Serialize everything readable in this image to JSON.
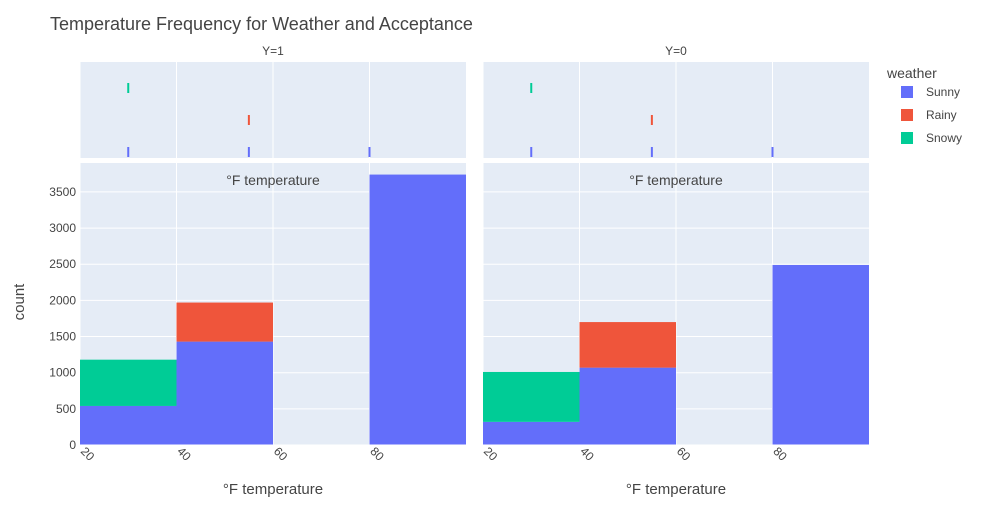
{
  "chart_data": {
    "type": "bar",
    "title": "Temperature Frequency for Weather and Acceptance",
    "facet_labels": [
      "Y=1",
      "Y=0"
    ],
    "xlabel": "°F temperature",
    "ylabel": "count",
    "panel_annotation": "°F temperature",
    "x_ticks": [
      "20",
      "40",
      "60",
      "80"
    ],
    "y_ticks": [
      "0",
      "500",
      "1000",
      "1500",
      "2000",
      "2500",
      "3000",
      "3500"
    ],
    "xlim": [
      20,
      100
    ],
    "ylim": [
      0,
      3900
    ],
    "bin_edges": [
      20,
      40,
      60,
      80,
      100
    ],
    "legend": {
      "title": "weather",
      "position": "top-right",
      "items": [
        "Sunny",
        "Rainy",
        "Snowy"
      ]
    },
    "colors": {
      "Sunny": "#636efa",
      "Rainy": "#ef553b",
      "Snowy": "#00cc96"
    },
    "grid": true,
    "stacked": true,
    "facets": [
      {
        "label": "Y=1",
        "series": [
          {
            "name": "Sunny",
            "values": [
              540,
              1430,
              0,
              3740
            ]
          },
          {
            "name": "Rainy",
            "values": [
              0,
              540,
              0,
              0
            ]
          },
          {
            "name": "Snowy",
            "values": [
              640,
              0,
              0,
              0
            ]
          }
        ],
        "rug": {
          "Sunny": [
            30,
            55,
            80
          ],
          "Rainy": [
            55
          ],
          "Snowy": [
            30
          ]
        }
      },
      {
        "label": "Y=0",
        "series": [
          {
            "name": "Sunny",
            "values": [
              320,
              1070,
              0,
              2490
            ]
          },
          {
            "name": "Rainy",
            "values": [
              0,
              630,
              0,
              0
            ]
          },
          {
            "name": "Snowy",
            "values": [
              690,
              0,
              0,
              0
            ]
          }
        ],
        "rug": {
          "Sunny": [
            30,
            55,
            80
          ],
          "Rainy": [
            55
          ],
          "Snowy": [
            30
          ]
        }
      }
    ]
  }
}
